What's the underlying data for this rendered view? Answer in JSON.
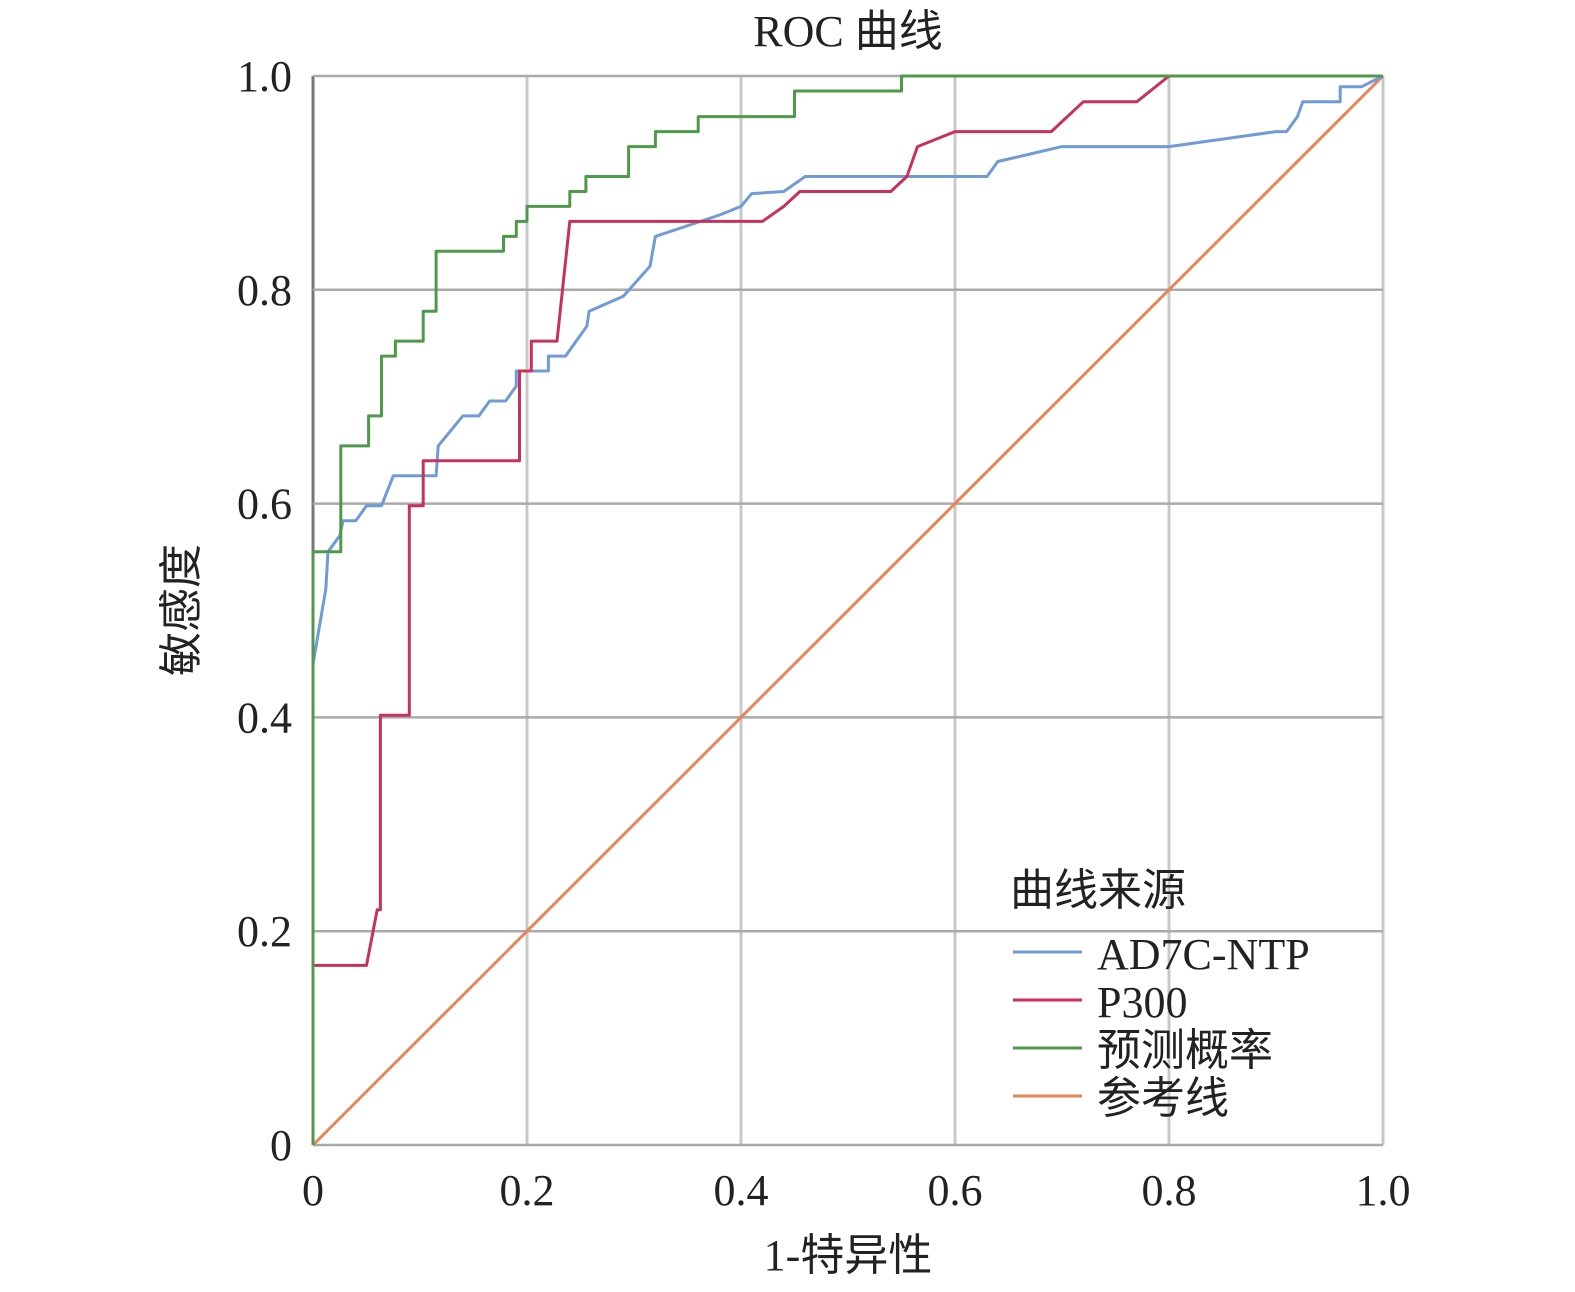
{
  "chart_data": {
    "type": "line",
    "title": "ROC 曲线",
    "xlabel": "1-特异性",
    "ylabel": "敏感度",
    "xlim": [
      0,
      1
    ],
    "ylim": [
      0,
      1
    ],
    "xticks": [
      "0",
      "0.2",
      "0.4",
      "0.6",
      "0.8",
      "1.0"
    ],
    "yticks": [
      "0",
      "0.2",
      "0.4",
      "0.6",
      "0.8",
      "1.0"
    ],
    "xtick_values": [
      0,
      0.2,
      0.4,
      0.6,
      0.8,
      1.0
    ],
    "ytick_values": [
      0,
      0.2,
      0.4,
      0.6,
      0.8,
      1.0
    ],
    "grid": true,
    "legend": {
      "title": "曲线来源",
      "placement": "bottom-right"
    },
    "series": [
      {
        "name": "AD7C-NTP",
        "color": "#6f9bd6",
        "points": [
          [
            0,
            0
          ],
          [
            0,
            0.45
          ],
          [
            0.012,
            0.52
          ],
          [
            0.014,
            0.555
          ],
          [
            0.025,
            0.57
          ],
          [
            0.028,
            0.584
          ],
          [
            0.04,
            0.584
          ],
          [
            0.05,
            0.598
          ],
          [
            0.064,
            0.598
          ],
          [
            0.075,
            0.626
          ],
          [
            0.115,
            0.626
          ],
          [
            0.117,
            0.654
          ],
          [
            0.14,
            0.682
          ],
          [
            0.155,
            0.682
          ],
          [
            0.165,
            0.696
          ],
          [
            0.18,
            0.696
          ],
          [
            0.19,
            0.71
          ],
          [
            0.19,
            0.724
          ],
          [
            0.22,
            0.724
          ],
          [
            0.22,
            0.738
          ],
          [
            0.236,
            0.738
          ],
          [
            0.256,
            0.766
          ],
          [
            0.258,
            0.78
          ],
          [
            0.29,
            0.794
          ],
          [
            0.315,
            0.822
          ],
          [
            0.32,
            0.85
          ],
          [
            0.38,
            0.87
          ],
          [
            0.4,
            0.878
          ],
          [
            0.41,
            0.89
          ],
          [
            0.44,
            0.892
          ],
          [
            0.46,
            0.906
          ],
          [
            0.63,
            0.906
          ],
          [
            0.64,
            0.92
          ],
          [
            0.7,
            0.934
          ],
          [
            0.8,
            0.934
          ],
          [
            0.9,
            0.948
          ],
          [
            0.91,
            0.948
          ],
          [
            0.92,
            0.962
          ],
          [
            0.925,
            0.976
          ],
          [
            0.96,
            0.976
          ],
          [
            0.96,
            0.99
          ],
          [
            0.98,
            0.99
          ],
          [
            1,
            1
          ]
        ]
      },
      {
        "name": "P300",
        "color": "#c8325a",
        "points": [
          [
            0,
            0
          ],
          [
            0,
            0.168
          ],
          [
            0.05,
            0.168
          ],
          [
            0.06,
            0.22
          ],
          [
            0.063,
            0.22
          ],
          [
            0.063,
            0.402
          ],
          [
            0.09,
            0.402
          ],
          [
            0.09,
            0.598
          ],
          [
            0.103,
            0.598
          ],
          [
            0.103,
            0.64
          ],
          [
            0.193,
            0.64
          ],
          [
            0.193,
            0.724
          ],
          [
            0.204,
            0.724
          ],
          [
            0.204,
            0.752
          ],
          [
            0.228,
            0.752
          ],
          [
            0.24,
            0.864
          ],
          [
            0.42,
            0.864
          ],
          [
            0.44,
            0.878
          ],
          [
            0.455,
            0.892
          ],
          [
            0.54,
            0.892
          ],
          [
            0.555,
            0.906
          ],
          [
            0.565,
            0.934
          ],
          [
            0.6,
            0.948
          ],
          [
            0.69,
            0.948
          ],
          [
            0.72,
            0.976
          ],
          [
            0.77,
            0.976
          ],
          [
            0.8,
            1.0
          ],
          [
            1,
            1
          ]
        ]
      },
      {
        "name": "预测概率",
        "color": "#4f9a4a",
        "points": [
          [
            0,
            0
          ],
          [
            0,
            0.555
          ],
          [
            0.026,
            0.555
          ],
          [
            0.026,
            0.654
          ],
          [
            0.052,
            0.654
          ],
          [
            0.052,
            0.682
          ],
          [
            0.064,
            0.682
          ],
          [
            0.064,
            0.738
          ],
          [
            0.077,
            0.738
          ],
          [
            0.077,
            0.752
          ],
          [
            0.103,
            0.752
          ],
          [
            0.103,
            0.78
          ],
          [
            0.115,
            0.78
          ],
          [
            0.115,
            0.836
          ],
          [
            0.178,
            0.836
          ],
          [
            0.178,
            0.85
          ],
          [
            0.19,
            0.85
          ],
          [
            0.19,
            0.864
          ],
          [
            0.2,
            0.864
          ],
          [
            0.2,
            0.878
          ],
          [
            0.24,
            0.878
          ],
          [
            0.24,
            0.892
          ],
          [
            0.255,
            0.892
          ],
          [
            0.255,
            0.906
          ],
          [
            0.295,
            0.906
          ],
          [
            0.295,
            0.934
          ],
          [
            0.32,
            0.934
          ],
          [
            0.32,
            0.948
          ],
          [
            0.36,
            0.948
          ],
          [
            0.36,
            0.962
          ],
          [
            0.45,
            0.962
          ],
          [
            0.45,
            0.986
          ],
          [
            0.55,
            0.986
          ],
          [
            0.55,
            1
          ],
          [
            1,
            1
          ]
        ]
      },
      {
        "name": "参考线",
        "color": "#e8855a",
        "points": [
          [
            0,
            0
          ],
          [
            1,
            1
          ]
        ]
      }
    ]
  }
}
